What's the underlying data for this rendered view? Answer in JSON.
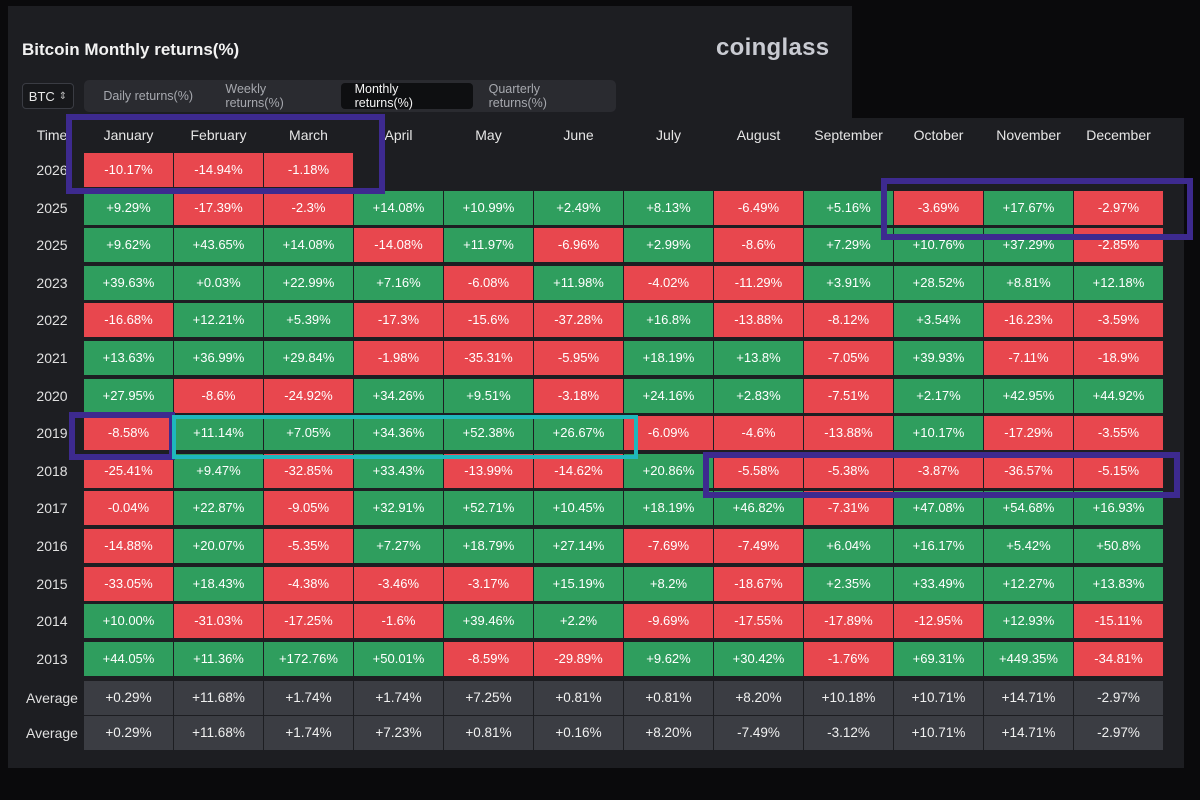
{
  "header": {
    "title": "Bitcoin Monthly returns(%)",
    "brand": "coinglass",
    "coin_select": "BTC",
    "tabs": [
      "Daily returns(%)",
      "Weekly returns(%)",
      "Monthly returns(%)",
      "Quarterly returns(%)"
    ],
    "active_tab": "Monthly returns(%)"
  },
  "table": {
    "time_header": "Time",
    "months": [
      "January",
      "February",
      "March",
      "April",
      "May",
      "June",
      "July",
      "August",
      "September",
      "October",
      "November",
      "December"
    ],
    "rows": [
      {
        "year": "2026",
        "values": [
          "-10.17%",
          "-14.94%",
          "-1.18%",
          "",
          "",
          "",
          "",
          "",
          "",
          "",
          "",
          ""
        ]
      },
      {
        "year": "2025",
        "values": [
          "+9.29%",
          "-17.39%",
          "-2.3%",
          "+14.08%",
          "+10.99%",
          "+2.49%",
          "+8.13%",
          "-6.49%",
          "+5.16%",
          "-3.69%",
          "+17.67%",
          "-2.97%"
        ]
      },
      {
        "year": "2025",
        "values": [
          "+9.62%",
          "+43.65%",
          "+14.08%",
          "-14.08%",
          "+11.97%",
          "-6.96%",
          "+2.99%",
          "-8.6%",
          "+7.29%",
          "+10.76%",
          "+37.29%",
          "-2.85%"
        ]
      },
      {
        "year": "2023",
        "values": [
          "+39.63%",
          "+0.03%",
          "+22.99%",
          "+7.16%",
          "-6.08%",
          "+11.98%",
          "-4.02%",
          "-11.29%",
          "+3.91%",
          "+28.52%",
          "+8.81%",
          "+12.18%"
        ]
      },
      {
        "year": "2022",
        "values": [
          "-16.68%",
          "+12.21%",
          "+5.39%",
          "-17.3%",
          "-15.6%",
          "-37.28%",
          "+16.8%",
          "-13.88%",
          "-8.12%",
          "+3.54%",
          "-16.23%",
          "-3.59%"
        ]
      },
      {
        "year": "2021",
        "values": [
          "+13.63%",
          "+36.99%",
          "+29.84%",
          "-1.98%",
          "-35.31%",
          "-5.95%",
          "+18.19%",
          "+13.8%",
          "-7.05%",
          "+39.93%",
          "-7.11%",
          "-18.9%"
        ]
      },
      {
        "year": "2020",
        "values": [
          "+27.95%",
          "-8.6%",
          "-24.92%",
          "+34.26%",
          "+9.51%",
          "-3.18%",
          "+24.16%",
          "+2.83%",
          "-7.51%",
          "+2.17%",
          "+42.95%",
          "+44.92%"
        ]
      },
      {
        "year": "2019",
        "values": [
          "-8.58%",
          "+11.14%",
          "+7.05%",
          "+34.36%",
          "+52.38%",
          "+26.67%",
          "-6.09%",
          "-4.6%",
          "-13.88%",
          "+10.17%",
          "-17.29%",
          "-3.55%"
        ]
      },
      {
        "year": "2018",
        "values": [
          "-25.41%",
          "+9.47%",
          "-32.85%",
          "+33.43%",
          "-13.99%",
          "-14.62%",
          "+20.86%",
          "-5.58%",
          "-5.38%",
          "-3.87%",
          "-36.57%",
          "-5.15%"
        ]
      },
      {
        "year": "2017",
        "values": [
          "-0.04%",
          "+22.87%",
          "-9.05%",
          "+32.91%",
          "+52.71%",
          "+10.45%",
          "+18.19%",
          "+46.82%",
          "-7.31%",
          "+47.08%",
          "+54.68%",
          "+16.93%"
        ]
      },
      {
        "year": "2016",
        "values": [
          "-14.88%",
          "+20.07%",
          "-5.35%",
          "+7.27%",
          "+18.79%",
          "+27.14%",
          "-7.69%",
          "-7.49%",
          "+6.04%",
          "+16.17%",
          "+5.42%",
          "+50.8%"
        ]
      },
      {
        "year": "2015",
        "values": [
          "-33.05%",
          "+18.43%",
          "-4.38%",
          "-3.46%",
          "-3.17%",
          "+15.19%",
          "+8.2%",
          "-18.67%",
          "+2.35%",
          "+33.49%",
          "+12.27%",
          "+13.83%"
        ]
      },
      {
        "year": "2014",
        "values": [
          "+10.00%",
          "-31.03%",
          "-17.25%",
          "-1.6%",
          "+39.46%",
          "+2.2%",
          "-9.69%",
          "-17.55%",
          "-17.89%",
          "-12.95%",
          "+12.93%",
          "-15.11%"
        ]
      },
      {
        "year": "2013",
        "values": [
          "+44.05%",
          "+11.36%",
          "+172.76%",
          "+50.01%",
          "-8.59%",
          "-29.89%",
          "+9.62%",
          "+30.42%",
          "-1.76%",
          "+69.31%",
          "+449.35%",
          "-34.81%"
        ]
      }
    ],
    "averages": [
      {
        "label": "Average",
        "values": [
          "+0.29%",
          "+11.68%",
          "+1.74%",
          "+1.74%",
          "+7.25%",
          "+0.81%",
          "+0.81%",
          "+8.20%",
          "+10.18%",
          "+10.71%",
          "+14.71%",
          "-2.97%"
        ]
      },
      {
        "label": "Average",
        "values": [
          "+0.29%",
          "+11.68%",
          "+1.74%",
          "+7.23%",
          "+0.81%",
          "+0.16%",
          "+8.20%",
          "-7.49%",
          "-3.12%",
          "+10.71%",
          "+14.71%",
          "-2.97%"
        ]
      }
    ]
  },
  "colors": {
    "positive": "#2f9e5e",
    "negative": "#e8474e",
    "average": "#3b3d43",
    "highlight_purple": "#3d2a8f",
    "highlight_teal": "#1fb7bd"
  }
}
